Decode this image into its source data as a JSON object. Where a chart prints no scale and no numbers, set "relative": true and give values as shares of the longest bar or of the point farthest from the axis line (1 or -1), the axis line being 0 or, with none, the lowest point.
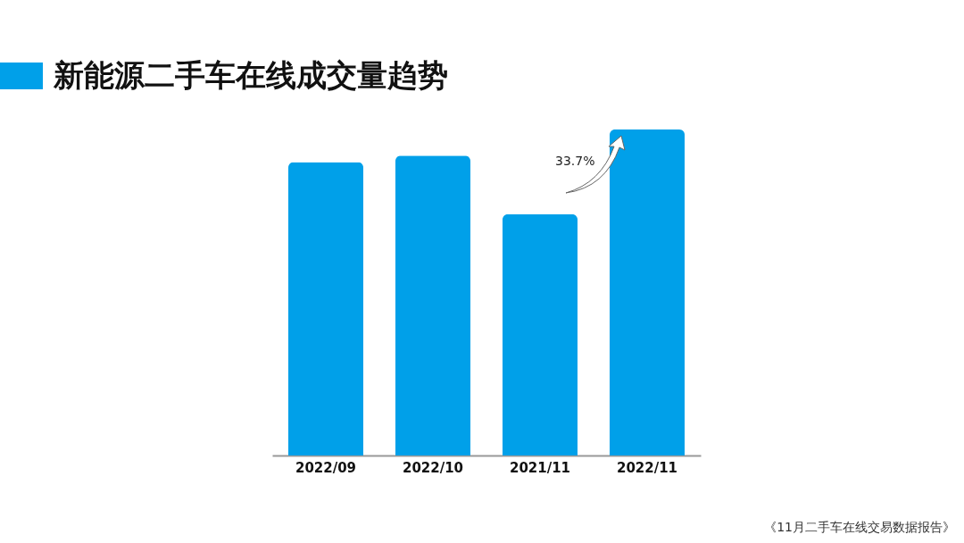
{
  "chart_data": {
    "type": "bar",
    "title": "新能源二手车在线成交量趋势",
    "categories": [
      "2022/09",
      "2022/10",
      "2021/11",
      "2022/11"
    ],
    "values": [
      0.9,
      0.92,
      0.74,
      1
    ],
    "color": "#00a0e9",
    "relative": true,
    "annotations": [
      "33.7%",
      "《11月二手车在线交易数据报告》"
    ]
  }
}
